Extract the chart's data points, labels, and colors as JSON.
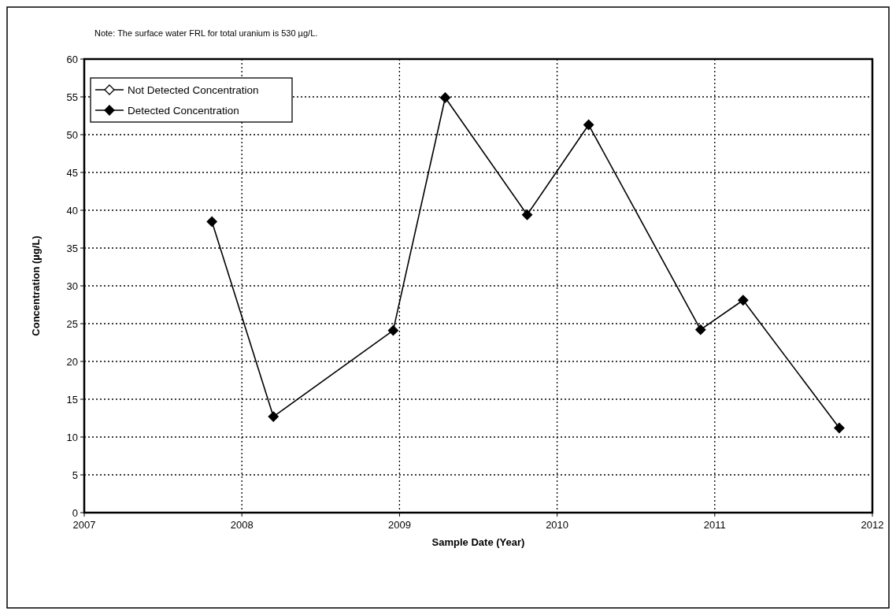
{
  "chart_data": {
    "type": "line",
    "annotations": [
      "Note:  The surface water FRL for total uranium is 530 µg/L."
    ],
    "xlabel": "Sample Date (Year)",
    "ylabel": "Concentration  (µg/L)",
    "x": [
      2007.81,
      2008.2,
      2008.96,
      2009.29,
      2009.81,
      2010.2,
      2010.91,
      2011.18,
      2011.79
    ],
    "series": [
      {
        "name": "Not Detected Concentration",
        "color": "#ffffff",
        "values": [
          null,
          null,
          null,
          null,
          null,
          null,
          null,
          null,
          null
        ]
      },
      {
        "name": "Detected Concentration",
        "color": "#000000",
        "values": [
          38.5,
          12.7,
          24.1,
          54.9,
          39.4,
          51.3,
          24.2,
          28.1,
          11.2
        ]
      }
    ],
    "xlim": [
      2007,
      2012
    ],
    "xticks": [
      2007,
      2008,
      2009,
      2010,
      2011,
      2012
    ],
    "ylim": [
      0,
      60
    ],
    "yticks": [
      0,
      5,
      10,
      15,
      20,
      25,
      30,
      35,
      40,
      45,
      50,
      55,
      60
    ],
    "grid": true,
    "legend": "top left",
    "marker": "diamond",
    "line_style": "solid"
  }
}
